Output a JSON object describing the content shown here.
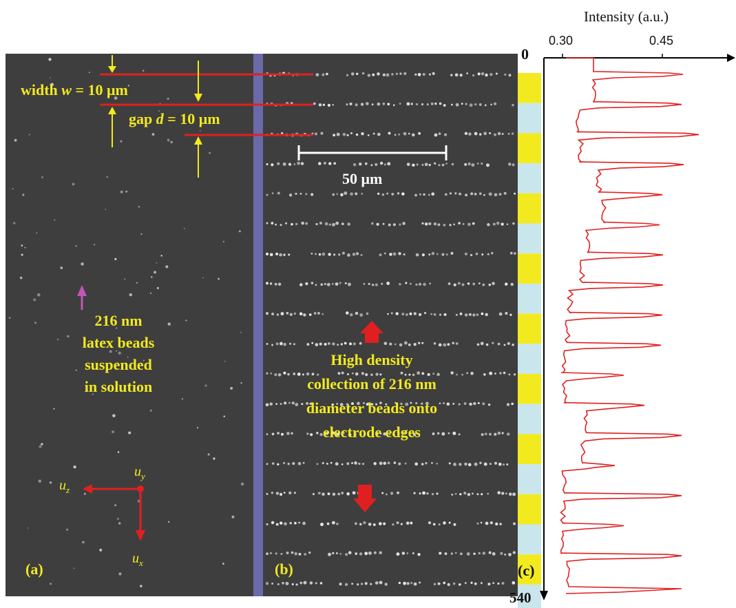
{
  "panel_a": {
    "label": "(a)",
    "width_label_prefix": "width ",
    "width_label_var": "w",
    "width_label_suffix": " = 10 μm",
    "gap_label_prefix": "gap ",
    "gap_label_var": "d",
    "gap_label_suffix": " = 10 μm",
    "bead_text": [
      "216 nm",
      "latex beads",
      "suspended",
      "in solution"
    ],
    "axes": {
      "y": "u",
      "y_sub": "y",
      "z": "u",
      "z_sub": "z",
      "x": "u",
      "x_sub": "x"
    }
  },
  "panel_b": {
    "label": "(b)",
    "scale_bar": "50 μm",
    "collection_text": [
      "High density",
      "collection of 216 nm",
      "diameter beads onto",
      "electrode edges"
    ]
  },
  "panel_c": {
    "label": "(c)",
    "axis_title": "Intensity (a.u.)",
    "tick_low": "0.30",
    "tick_high": "0.45",
    "pos_start": "0",
    "pos_end": "540"
  },
  "colors": {
    "electrode": "#f2ea1e",
    "gap": "#c8e6ec",
    "profile": "#e02020",
    "annotation_red": "#e02020",
    "annotation_yellow": "#f2ea1e",
    "bead_arrow": "#c455b8",
    "divider": "#6a6aa8"
  }
}
